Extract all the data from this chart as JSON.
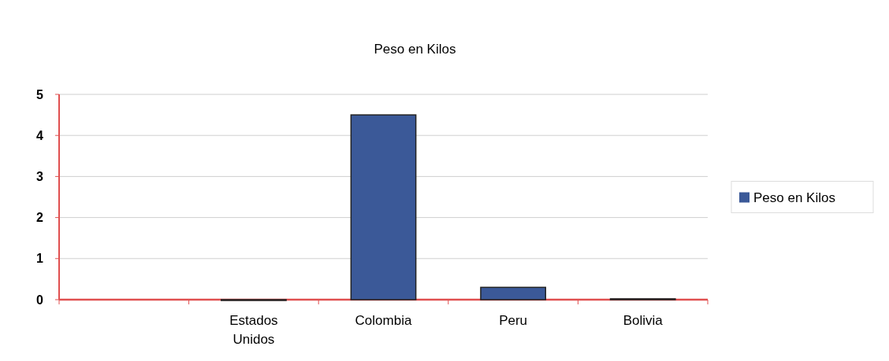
{
  "chart_data": {
    "type": "bar",
    "title": "Peso en Kilos",
    "categories": [
      null,
      "Estados Unidos",
      "Colombia",
      "Peru",
      "Bolivia"
    ],
    "series": [
      {
        "name": "Peso en Kilos",
        "color": "#3b5998",
        "values": [
          null,
          0,
          4.5,
          0.3,
          0.02
        ]
      }
    ],
    "ylim": [
      0,
      5
    ],
    "yticks": [
      0,
      1,
      2,
      3,
      4,
      5
    ],
    "grid": "y",
    "legend": "right"
  }
}
